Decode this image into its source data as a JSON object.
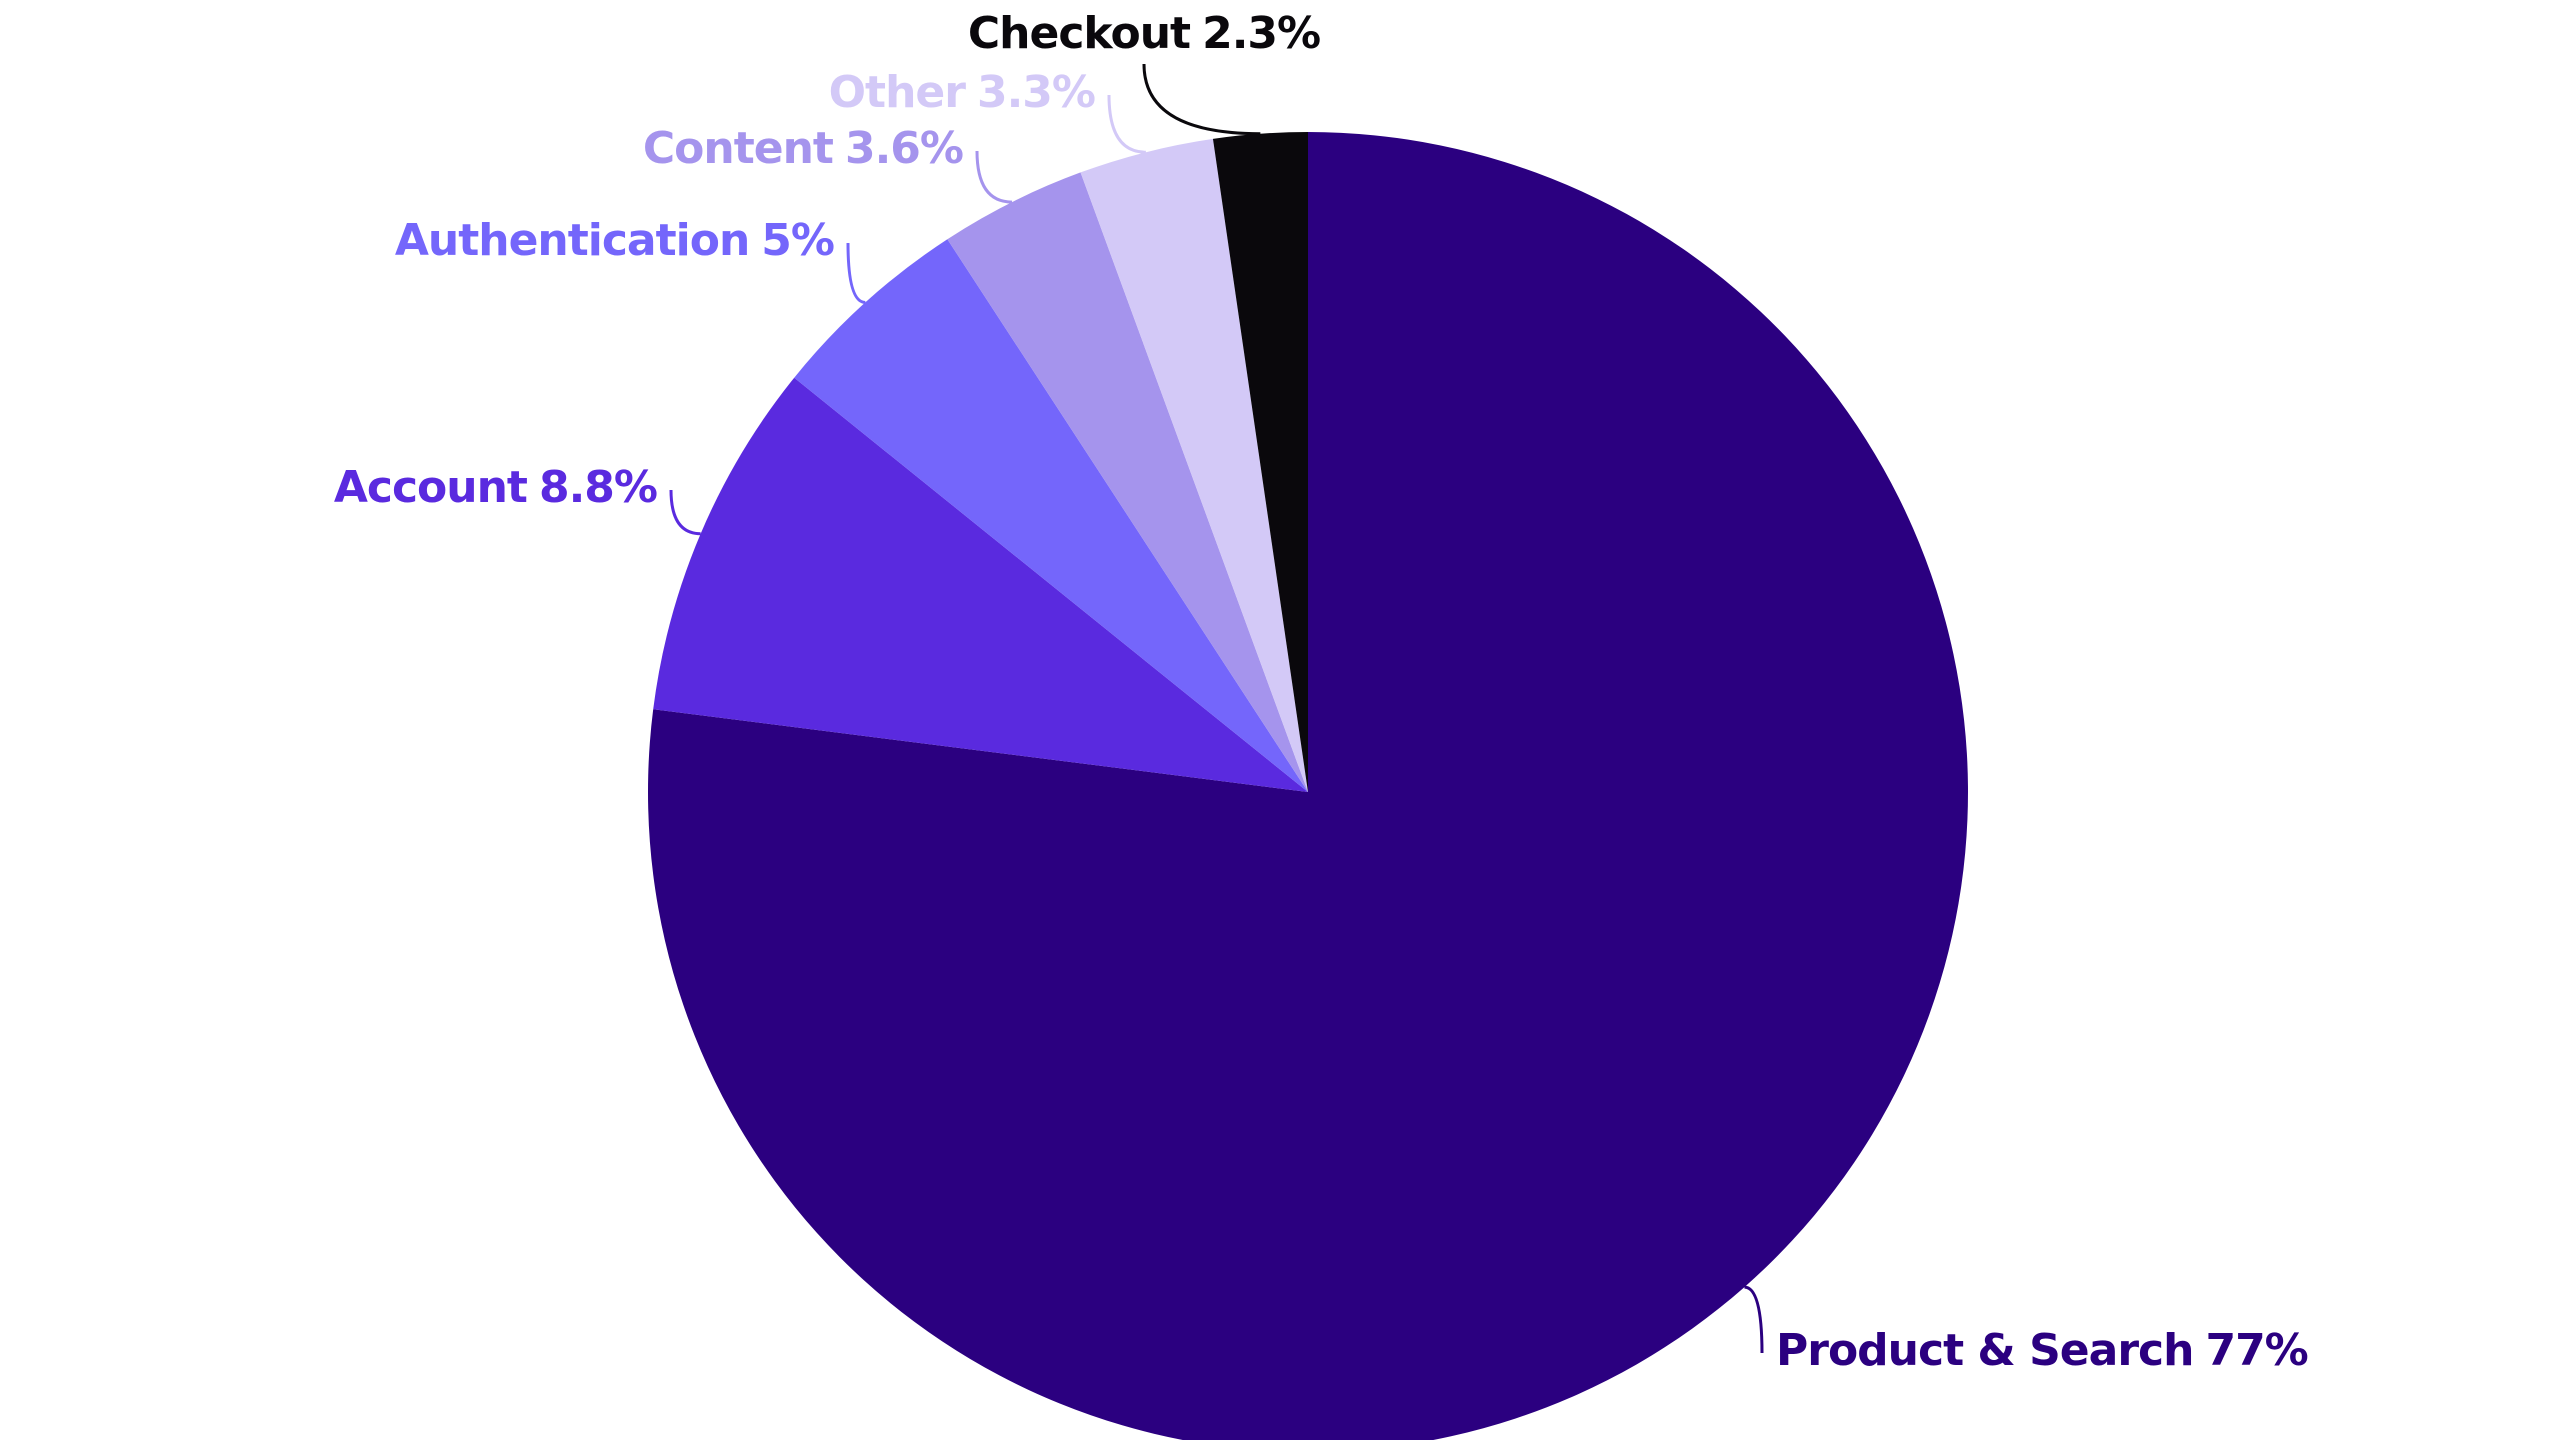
{
  "chart_data": {
    "type": "pie",
    "categories": [
      "Product & Search",
      "Account",
      "Authentication",
      "Content",
      "Other",
      "Checkout"
    ],
    "values": [
      77,
      8.8,
      5,
      3.6,
      3.3,
      2.3
    ],
    "value_labels": [
      "77%",
      "8.8%",
      "5%",
      "3.6%",
      "3.3%",
      "2.3%"
    ],
    "colors": [
      "#2b0080",
      "#5a2adf",
      "#7466fb",
      "#a594ed",
      "#d3c9f7",
      "#0a080c"
    ]
  }
}
